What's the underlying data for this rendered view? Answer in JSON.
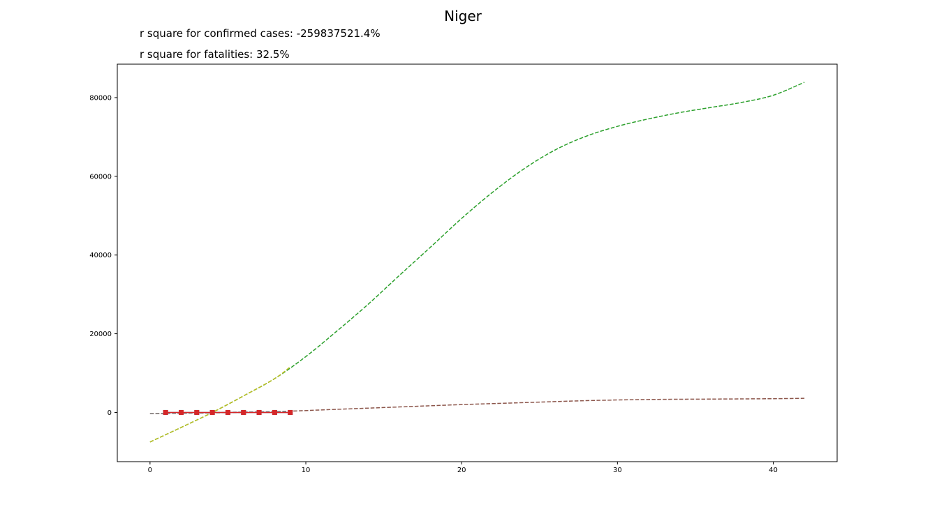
{
  "chart_data": {
    "type": "line",
    "title": "Niger",
    "annotations": [
      "r square for confirmed cases: -259837521.4%",
      "r square for fatalities: 32.5%"
    ],
    "xlabel": "",
    "ylabel": "",
    "xlim": [
      -2.1,
      44.1
    ],
    "ylim": [
      -12500,
      88500
    ],
    "x_ticks": [
      0,
      10,
      20,
      30,
      40
    ],
    "y_ticks": [
      0,
      20000,
      40000,
      60000,
      80000
    ],
    "grid": false,
    "series": [
      {
        "kind": "dashed-fit",
        "color": "#2ca02c",
        "x": [
          0,
          2,
          4,
          6,
          8,
          10,
          12,
          14,
          16,
          18,
          20,
          22,
          24,
          26,
          28,
          30,
          32,
          34,
          36,
          38,
          40,
          42
        ],
        "y": [
          -7500,
          -3800,
          0,
          4200,
          8600,
          14200,
          20700,
          27500,
          34800,
          42000,
          49300,
          56000,
          61900,
          66700,
          70200,
          72700,
          74600,
          76200,
          77500,
          78800,
          80600,
          83900
        ]
      },
      {
        "kind": "dashed-fit",
        "color": "#8c564b",
        "x": [
          0,
          4,
          8,
          12,
          16,
          20,
          24,
          28,
          32,
          36,
          40,
          42
        ],
        "y": [
          -300,
          -100,
          200,
          800,
          1400,
          2000,
          2500,
          3000,
          3300,
          3400,
          3500,
          3600
        ]
      },
      {
        "kind": "dashed-fit",
        "color": "#bcbd22",
        "x": [
          0,
          2,
          4,
          6,
          8,
          9
        ],
        "y": [
          -7500,
          -3800,
          0,
          4200,
          8600,
          11600
        ]
      },
      {
        "kind": "dashed-fit",
        "color": "#7f7f7f",
        "x": [
          0,
          9
        ],
        "y": [
          -300,
          300
        ]
      },
      {
        "kind": "markers",
        "color": "#1f77b4",
        "x": [
          1,
          2,
          3,
          4,
          5,
          6,
          7,
          8,
          9
        ],
        "y": [
          0,
          0,
          0,
          0,
          0,
          0,
          0,
          0,
          0
        ]
      },
      {
        "kind": "markers",
        "color": "#d62728",
        "x": [
          1,
          2,
          3,
          4,
          5,
          6,
          7,
          8,
          9
        ],
        "y": [
          0,
          0,
          0,
          0,
          0,
          0,
          0,
          0,
          0
        ]
      }
    ]
  }
}
